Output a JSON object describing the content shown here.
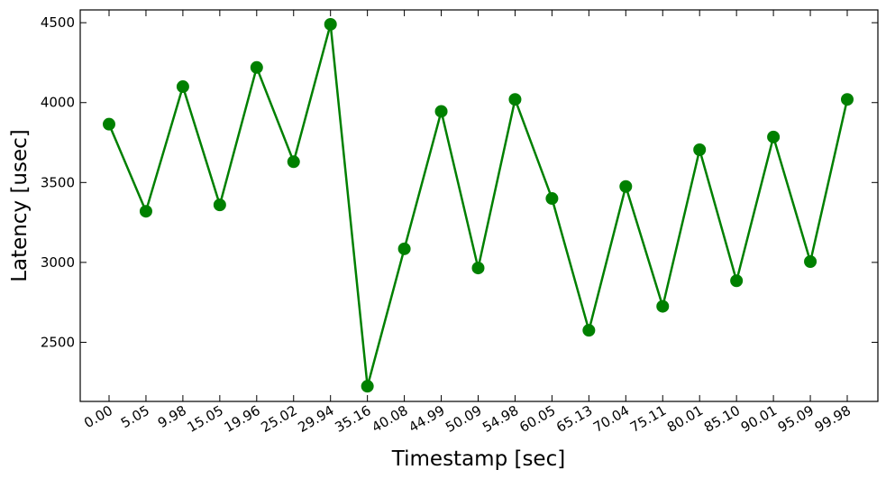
{
  "chart_data": {
    "type": "line",
    "title": "",
    "xlabel": "Timestamp [sec]",
    "ylabel": "Latency [usec]",
    "x_tick_labels": [
      "0.00",
      "5.05",
      "9.98",
      "15.05",
      "19.96",
      "25.02",
      "29.94",
      "35.16",
      "40.08",
      "44.99",
      "50.09",
      "54.98",
      "60.05",
      "65.13",
      "70.04",
      "75.11",
      "80.01",
      "85.10",
      "90.01",
      "95.09",
      "99.98"
    ],
    "y_tick_labels": [
      "2500",
      "3000",
      "3500",
      "4000",
      "4500"
    ],
    "y_ticks": [
      2500,
      3000,
      3500,
      4000,
      4500
    ],
    "ylim": [
      2130,
      4580
    ],
    "grid": false,
    "color": "#008000",
    "series": [
      {
        "name": "",
        "values": [
          3865,
          3320,
          4100,
          3360,
          4220,
          3630,
          4490,
          2225,
          3085,
          3945,
          2965,
          4020,
          3400,
          2575,
          3475,
          2725,
          3705,
          2885,
          3785,
          3005,
          4020
        ]
      }
    ]
  }
}
